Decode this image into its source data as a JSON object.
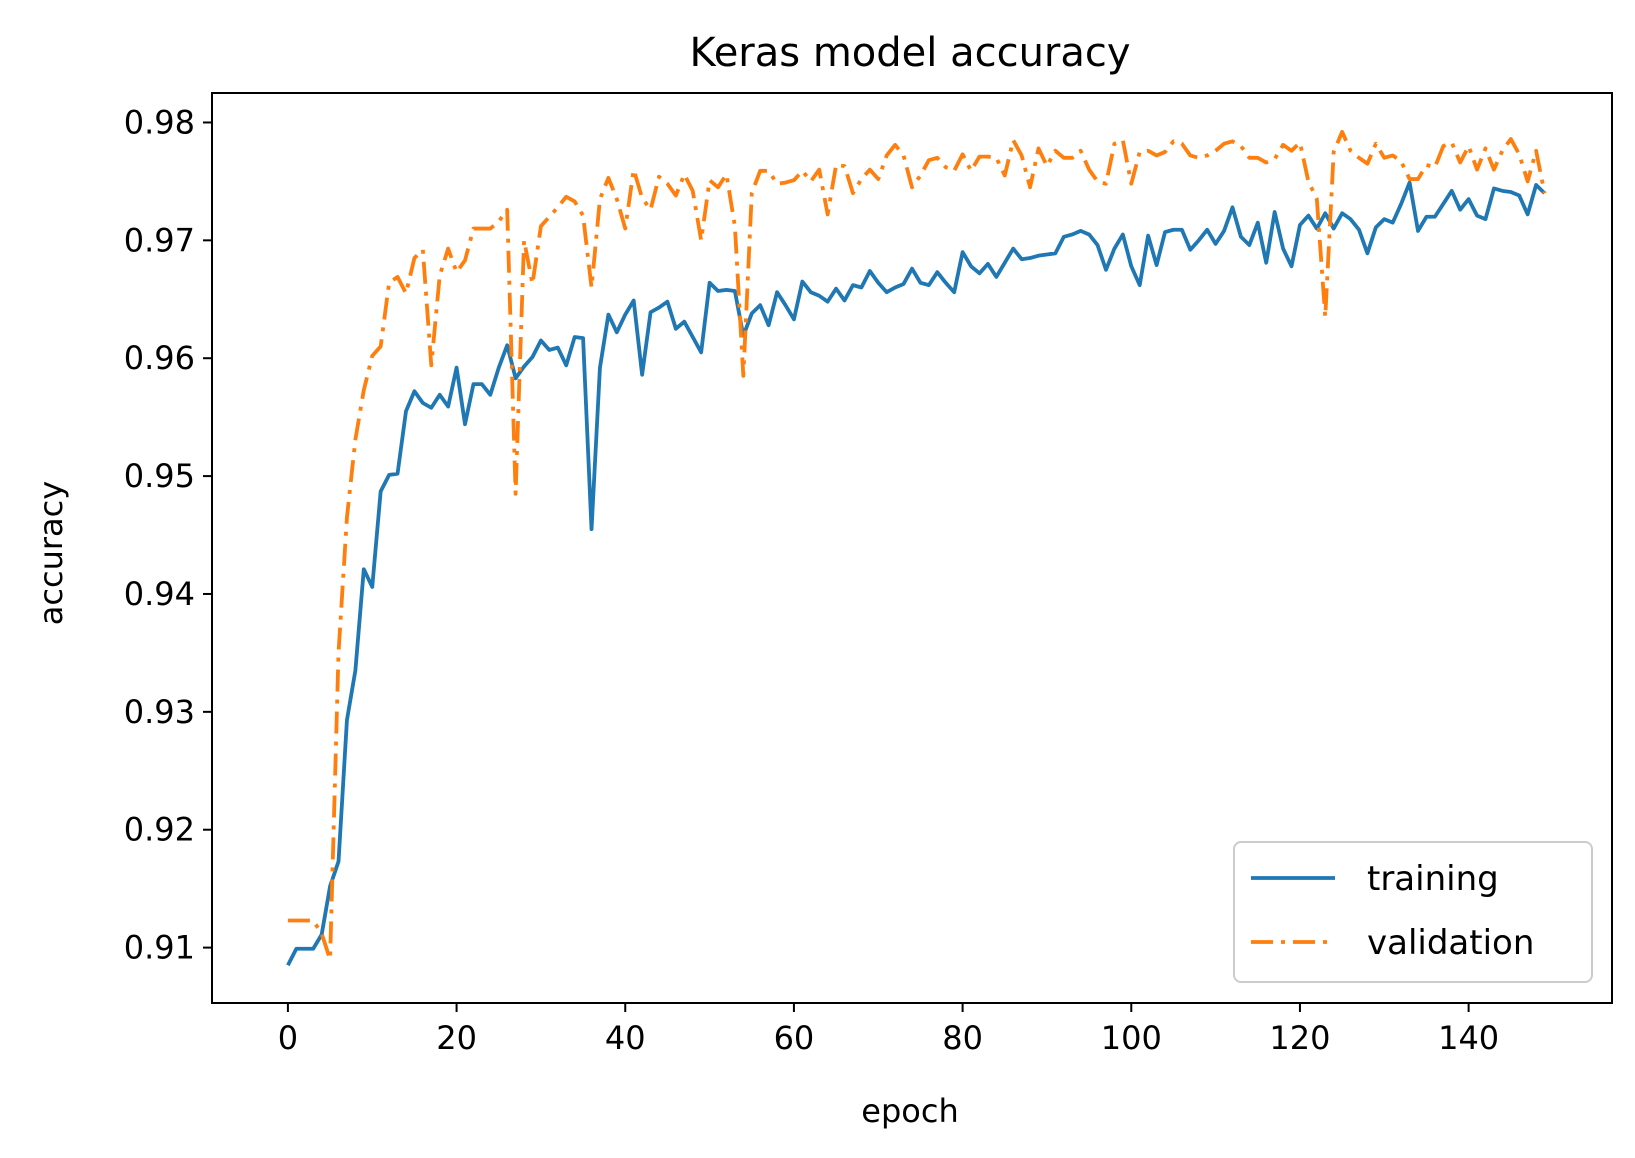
{
  "chart_data": {
    "type": "line",
    "title": "Keras model accuracy",
    "xlabel": "epoch",
    "ylabel": "accuracy",
    "xlim": [
      -9,
      157
    ],
    "ylim": [
      0.9053,
      0.9825
    ],
    "xticks": [
      0,
      20,
      40,
      60,
      80,
      100,
      120,
      140
    ],
    "yticks": [
      0.91,
      0.92,
      0.93,
      0.94,
      0.95,
      0.96,
      0.97,
      0.98
    ],
    "xtick_labels": [
      "0",
      "20",
      "40",
      "60",
      "80",
      "100",
      "120",
      "140"
    ],
    "ytick_labels": [
      "0.91",
      "0.92",
      "0.93",
      "0.94",
      "0.95",
      "0.96",
      "0.97",
      "0.98"
    ],
    "grid": false,
    "legend_position": "lower-right",
    "series": [
      {
        "name": "training",
        "color": "#1f77b4",
        "style": "solid",
        "x": [
          0,
          1,
          2,
          3,
          4,
          5,
          6,
          7,
          8,
          9,
          10,
          11,
          12,
          13,
          14,
          15,
          16,
          17,
          18,
          19,
          20,
          21,
          22,
          23,
          24,
          25,
          26,
          27,
          28,
          29,
          30,
          31,
          32,
          33,
          34,
          35,
          36,
          37,
          38,
          39,
          40,
          41,
          42,
          43,
          44,
          45,
          46,
          47,
          48,
          49,
          50,
          51,
          52,
          53,
          54,
          55,
          56,
          57,
          58,
          59,
          60,
          61,
          62,
          63,
          64,
          65,
          66,
          67,
          68,
          69,
          70,
          71,
          72,
          73,
          74,
          75,
          76,
          77,
          78,
          79,
          80,
          81,
          82,
          83,
          84,
          85,
          86,
          87,
          88,
          89,
          90,
          91,
          92,
          93,
          94,
          95,
          96,
          97,
          98,
          99,
          100,
          101,
          102,
          103,
          104,
          105,
          106,
          107,
          108,
          109,
          110,
          111,
          112,
          113,
          114,
          115,
          116,
          117,
          118,
          119,
          120,
          121,
          122,
          123,
          124,
          125,
          126,
          127,
          128,
          129,
          130,
          131,
          132,
          133,
          134,
          135,
          136,
          137,
          138,
          139,
          140,
          141,
          142,
          143,
          144,
          145,
          146,
          147,
          148,
          149
        ],
        "values": [
          0.9085,
          0.9099,
          0.9099,
          0.9099,
          0.9111,
          0.9152,
          0.9173,
          0.9293,
          0.9335,
          0.9421,
          0.9406,
          0.9487,
          0.9501,
          0.9502,
          0.9555,
          0.9572,
          0.9562,
          0.9558,
          0.9569,
          0.9559,
          0.9592,
          0.9544,
          0.9578,
          0.9578,
          0.9569,
          0.9592,
          0.9611,
          0.9583,
          0.9593,
          0.9601,
          0.9615,
          0.9607,
          0.9609,
          0.9594,
          0.9618,
          0.9617,
          0.9455,
          0.9592,
          0.9637,
          0.9622,
          0.9637,
          0.9649,
          0.9586,
          0.9639,
          0.9643,
          0.9648,
          0.9625,
          0.9631,
          0.9618,
          0.9605,
          0.9664,
          0.9657,
          0.9658,
          0.9657,
          0.9619,
          0.9638,
          0.9645,
          0.9628,
          0.9656,
          0.9645,
          0.9633,
          0.9665,
          0.9656,
          0.9653,
          0.9648,
          0.9659,
          0.9649,
          0.9662,
          0.966,
          0.9674,
          0.9664,
          0.9656,
          0.966,
          0.9663,
          0.9676,
          0.9664,
          0.9662,
          0.9673,
          0.9664,
          0.9656,
          0.969,
          0.9678,
          0.9672,
          0.968,
          0.9669,
          0.9681,
          0.9693,
          0.9684,
          0.9685,
          0.9687,
          0.9688,
          0.9689,
          0.9703,
          0.9705,
          0.9708,
          0.9705,
          0.9696,
          0.9675,
          0.9693,
          0.9705,
          0.9678,
          0.9662,
          0.9704,
          0.9679,
          0.9707,
          0.9709,
          0.9709,
          0.9692,
          0.97,
          0.9709,
          0.9697,
          0.9708,
          0.9728,
          0.9703,
          0.9696,
          0.9715,
          0.9681,
          0.9724,
          0.9693,
          0.9678,
          0.9713,
          0.9721,
          0.971,
          0.9723,
          0.971,
          0.9723,
          0.9718,
          0.9709,
          0.9689,
          0.9711,
          0.9718,
          0.9715,
          0.9731,
          0.9749,
          0.9708,
          0.972,
          0.972,
          0.9731,
          0.9742,
          0.9726,
          0.9735,
          0.9721,
          0.9718,
          0.9744,
          0.9742,
          0.9741,
          0.9738,
          0.9722,
          0.9747,
          0.974
        ]
      },
      {
        "name": "validation",
        "color": "#ff7f0e",
        "style": "dashdot",
        "x": [
          0,
          1,
          2,
          3,
          4,
          5,
          6,
          7,
          8,
          9,
          10,
          11,
          12,
          13,
          14,
          15,
          16,
          17,
          18,
          19,
          20,
          21,
          22,
          23,
          24,
          25,
          26,
          27,
          28,
          29,
          30,
          31,
          32,
          33,
          34,
          35,
          36,
          37,
          38,
          39,
          40,
          41,
          42,
          43,
          44,
          45,
          46,
          47,
          48,
          49,
          50,
          51,
          52,
          53,
          54,
          55,
          56,
          57,
          58,
          59,
          60,
          61,
          62,
          63,
          64,
          65,
          66,
          67,
          68,
          69,
          70,
          71,
          72,
          73,
          74,
          75,
          76,
          77,
          78,
          79,
          80,
          81,
          82,
          83,
          84,
          85,
          86,
          87,
          88,
          89,
          90,
          91,
          92,
          93,
          94,
          95,
          96,
          97,
          98,
          99,
          100,
          101,
          102,
          103,
          104,
          105,
          106,
          107,
          108,
          109,
          110,
          111,
          112,
          113,
          114,
          115,
          116,
          117,
          118,
          119,
          120,
          121,
          122,
          123,
          124,
          125,
          126,
          127,
          128,
          129,
          130,
          131,
          132,
          133,
          134,
          135,
          136,
          137,
          138,
          139,
          140,
          141,
          142,
          143,
          144,
          145,
          146,
          147,
          148,
          149
        ],
        "values": [
          0.9123,
          0.9123,
          0.9123,
          0.9123,
          0.9112,
          0.909,
          0.935,
          0.9465,
          0.9531,
          0.9573,
          0.9602,
          0.961,
          0.9664,
          0.9669,
          0.9655,
          0.9685,
          0.9692,
          0.9594,
          0.967,
          0.9693,
          0.9673,
          0.9683,
          0.971,
          0.971,
          0.971,
          0.9716,
          0.9726,
          0.9485,
          0.97,
          0.9663,
          0.9712,
          0.972,
          0.9728,
          0.9737,
          0.9733,
          0.9721,
          0.966,
          0.9735,
          0.9753,
          0.9735,
          0.971,
          0.976,
          0.9736,
          0.9726,
          0.9754,
          0.9748,
          0.9738,
          0.9756,
          0.9742,
          0.97,
          0.9751,
          0.9745,
          0.9756,
          0.9712,
          0.9585,
          0.974,
          0.9759,
          0.9759,
          0.9748,
          0.9749,
          0.9751,
          0.9759,
          0.975,
          0.976,
          0.9722,
          0.9764,
          0.9763,
          0.974,
          0.9752,
          0.976,
          0.9752,
          0.9772,
          0.9781,
          0.9772,
          0.9745,
          0.9755,
          0.9768,
          0.977,
          0.9762,
          0.9759,
          0.9773,
          0.9759,
          0.9771,
          0.9771,
          0.977,
          0.9755,
          0.9785,
          0.9772,
          0.9745,
          0.9778,
          0.9763,
          0.9776,
          0.977,
          0.977,
          0.9776,
          0.976,
          0.975,
          0.9748,
          0.9782,
          0.9785,
          0.9748,
          0.9775,
          0.9776,
          0.9772,
          0.9775,
          0.9784,
          0.9782,
          0.9772,
          0.977,
          0.9772,
          0.9776,
          0.9782,
          0.9784,
          0.978,
          0.977,
          0.977,
          0.9766,
          0.9769,
          0.9781,
          0.9776,
          0.9783,
          0.975,
          0.9735,
          0.9635,
          0.9775,
          0.9792,
          0.9776,
          0.977,
          0.9765,
          0.9782,
          0.977,
          0.9772,
          0.9767,
          0.9752,
          0.9752,
          0.9764,
          0.9762,
          0.978,
          0.9783,
          0.9766,
          0.978,
          0.976,
          0.9778,
          0.976,
          0.9776,
          0.9786,
          0.9773,
          0.975,
          0.9776,
          0.974
        ]
      }
    ]
  }
}
